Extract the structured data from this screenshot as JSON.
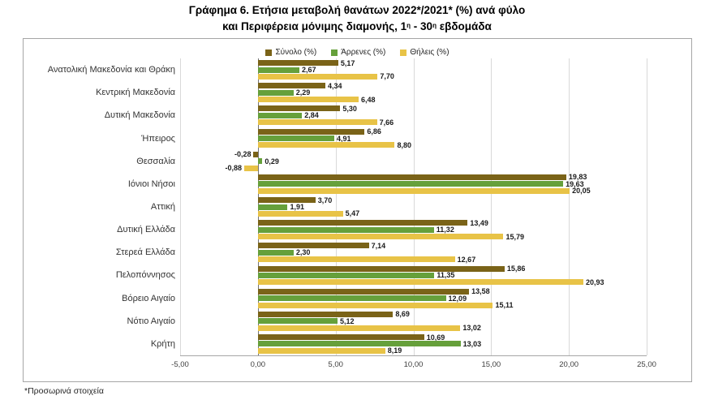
{
  "title": {
    "line1": "Γράφημα 6. Ετήσια μεταβολή θανάτων 2022*/2021* (%) ανά φύλο",
    "line2_parts": [
      {
        "text": "και Περιφέρεια μόνιμης διαμονής, 1"
      },
      {
        "text": "η",
        "sup": true
      },
      {
        "text": " - 30"
      },
      {
        "text": "η",
        "sup": true
      },
      {
        "text": " εβδομάδα"
      }
    ]
  },
  "footnote": "*Προσωρινά στοιχεία",
  "chart_data": {
    "type": "bar",
    "orientation": "horizontal",
    "title": "Γράφημα 6. Ετήσια μεταβολή θανάτων 2022*/2021* (%) ανά φύλο και Περιφέρεια μόνιμης διαμονής, 1η - 30η εβδομάδα",
    "categories": [
      "Ανατολική Μακεδονία και Θράκη",
      "Κεντρική Μακεδονία",
      "Δυτική Μακεδονία",
      "Ήπειρος",
      "Θεσσαλία",
      "Ιόνιοι Νήσοι",
      "Αττική",
      "Δυτική Ελλάδα",
      "Στερεά Ελλάδα",
      "Πελοπόννησος",
      "Βόρειο Αιγαίο",
      "Νότιο Αιγαίο",
      "Κρήτη"
    ],
    "series": [
      {
        "name": "Σύνολο (%)",
        "key": "total",
        "color": "#7a6318",
        "values": [
          5.17,
          4.34,
          5.3,
          6.86,
          -0.28,
          19.83,
          3.7,
          13.49,
          7.14,
          15.86,
          13.58,
          8.69,
          10.69
        ]
      },
      {
        "name": "Άρρενες (%)",
        "key": "males",
        "color": "#66a03b",
        "values": [
          2.67,
          2.29,
          2.84,
          4.91,
          0.29,
          19.63,
          1.91,
          11.32,
          2.3,
          11.35,
          12.09,
          5.12,
          13.03
        ]
      },
      {
        "name": "Θήλεις (%)",
        "key": "females",
        "color": "#e8c347",
        "values": [
          7.7,
          6.48,
          7.66,
          8.8,
          -0.88,
          20.05,
          5.47,
          15.79,
          12.67,
          20.93,
          15.11,
          13.02,
          8.19
        ]
      }
    ],
    "xlim": [
      -5,
      25
    ],
    "xticks": [
      -5,
      0,
      5,
      10,
      15,
      20,
      25
    ],
    "decimal_separator": ",",
    "grid": true,
    "legend_position": "top",
    "value_labels": true
  }
}
